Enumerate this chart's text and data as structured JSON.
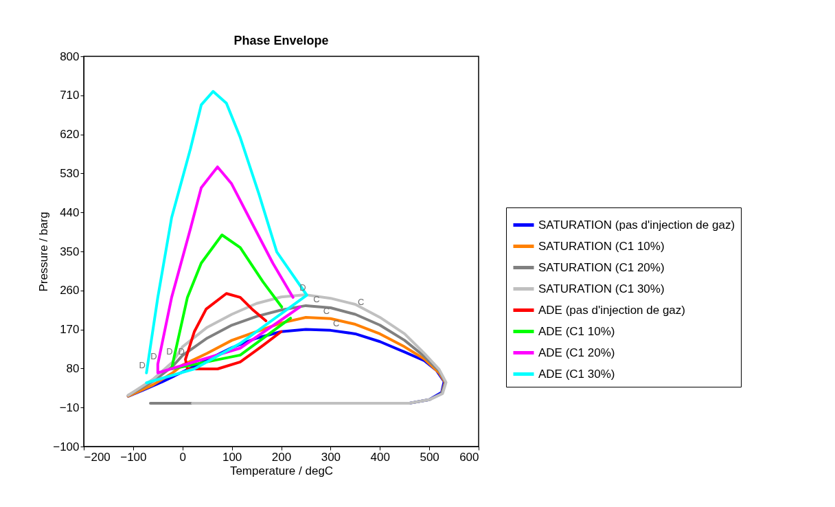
{
  "chart_data": {
    "type": "line",
    "title": "Phase Envelope",
    "xlabel": "Temperature / degC",
    "ylabel": "Pressure / barg",
    "xlim": [
      -200,
      600
    ],
    "xticks": [
      -200,
      -100,
      0,
      100,
      200,
      300,
      400,
      500,
      600
    ],
    "ylim": [
      -100,
      800
    ],
    "yticks": [
      -100,
      -10,
      80,
      170,
      260,
      350,
      440,
      530,
      620,
      710,
      800
    ],
    "grid": false,
    "legend": "right",
    "marker": "none",
    "line_style": "solid",
    "series": [
      {
        "name": "SATURATION (pas d'injection de gaz)",
        "color": "#0000ff",
        "x": [
          -110,
          -80,
          -40,
          0,
          50,
          100,
          150,
          200,
          250,
          300,
          350,
          400,
          450,
          490,
          515,
          530,
          525,
          500,
          460
        ],
        "values": [
          16,
          30,
          50,
          72,
          100,
          128,
          150,
          165,
          170,
          168,
          160,
          142,
          118,
          98,
          75,
          50,
          25,
          8,
          0
        ]
      },
      {
        "name": "SATURATION (C1 10%)",
        "color": "#ff8000",
        "x": [
          -110,
          -60,
          -20,
          0,
          50,
          100,
          150,
          200,
          250,
          300,
          350,
          400,
          450,
          490,
          520,
          532,
          525
        ],
        "values": [
          16,
          42,
          70,
          88,
          115,
          145,
          165,
          185,
          198,
          195,
          182,
          160,
          130,
          102,
          70,
          48,
          22
        ]
      },
      {
        "name": "SATURATION (C1 20%)",
        "color": "#808080",
        "x": [
          -110,
          -60,
          -20,
          0,
          50,
          100,
          150,
          200,
          250,
          300,
          350,
          400,
          450,
          490,
          520,
          533,
          525,
          500,
          460,
          300,
          20,
          -65
        ],
        "values": [
          18,
          50,
          85,
          110,
          150,
          180,
          200,
          215,
          225,
          220,
          205,
          180,
          145,
          108,
          75,
          48,
          22,
          8,
          0,
          0,
          0,
          0
        ]
      },
      {
        "name": "SATURATION (C1 30%)",
        "color": "#c0c0c0",
        "x": [
          -110,
          -60,
          -20,
          0,
          50,
          100,
          150,
          200,
          250,
          300,
          350,
          400,
          450,
          490,
          520,
          534,
          527,
          500,
          460,
          300,
          20
        ],
        "values": [
          18,
          55,
          95,
          130,
          175,
          205,
          230,
          245,
          250,
          242,
          228,
          198,
          160,
          115,
          78,
          48,
          22,
          8,
          0,
          0,
          0
        ]
      },
      {
        "name": "ADE (pas d'injection de gaz)",
        "color": "#ff0000",
        "x": [
          200,
          163,
          117,
          71,
          10,
          6,
          24,
          48,
          89,
          117,
          141,
          169
        ],
        "values": [
          165,
          133,
          95,
          79,
          79,
          101,
          165,
          217,
          253,
          244,
          217,
          190
        ]
      },
      {
        "name": "ADE (C1 10%)",
        "color": "#00ff00",
        "x": [
          219,
          117,
          -22,
          -18,
          10,
          38,
          80,
          117,
          163,
          201
        ],
        "values": [
          196,
          111,
          79,
          101,
          244,
          323,
          388,
          359,
          280,
          222
        ]
      },
      {
        "name": "ADE (C1 20%)",
        "color": "#ff00ff",
        "x": [
          238,
          117,
          -50,
          -50,
          -22,
          16,
          38,
          71,
          99,
          135,
          183,
          224
        ],
        "values": [
          222,
          127,
          70,
          90,
          244,
          402,
          497,
          545,
          507,
          428,
          323,
          244
        ]
      },
      {
        "name": "ADE (C1 30%)",
        "color": "#00ffff",
        "x": [
          -73,
          24,
          117,
          252,
          191,
          155,
          117,
          89,
          62,
          38,
          16,
          -22,
          -50,
          -73
        ],
        "values": [
          47,
          79,
          138,
          249,
          349,
          482,
          613,
          692,
          719,
          688,
          586,
          428,
          244,
          70
        ]
      }
    ],
    "annotations": [
      {
        "text": "D",
        "x": -73,
        "y": 70
      },
      {
        "text": "D",
        "x": -50,
        "y": 90
      },
      {
        "text": "D",
        "x": -18,
        "y": 101
      },
      {
        "text": "D",
        "x": 6,
        "y": 101
      },
      {
        "text": "D",
        "x": 252,
        "y": 249
      },
      {
        "text": "C",
        "x": 370,
        "y": 216
      },
      {
        "text": "C",
        "x": 280,
        "y": 222
      },
      {
        "text": "C",
        "x": 300,
        "y": 195
      },
      {
        "text": "C",
        "x": 320,
        "y": 166
      }
    ]
  }
}
